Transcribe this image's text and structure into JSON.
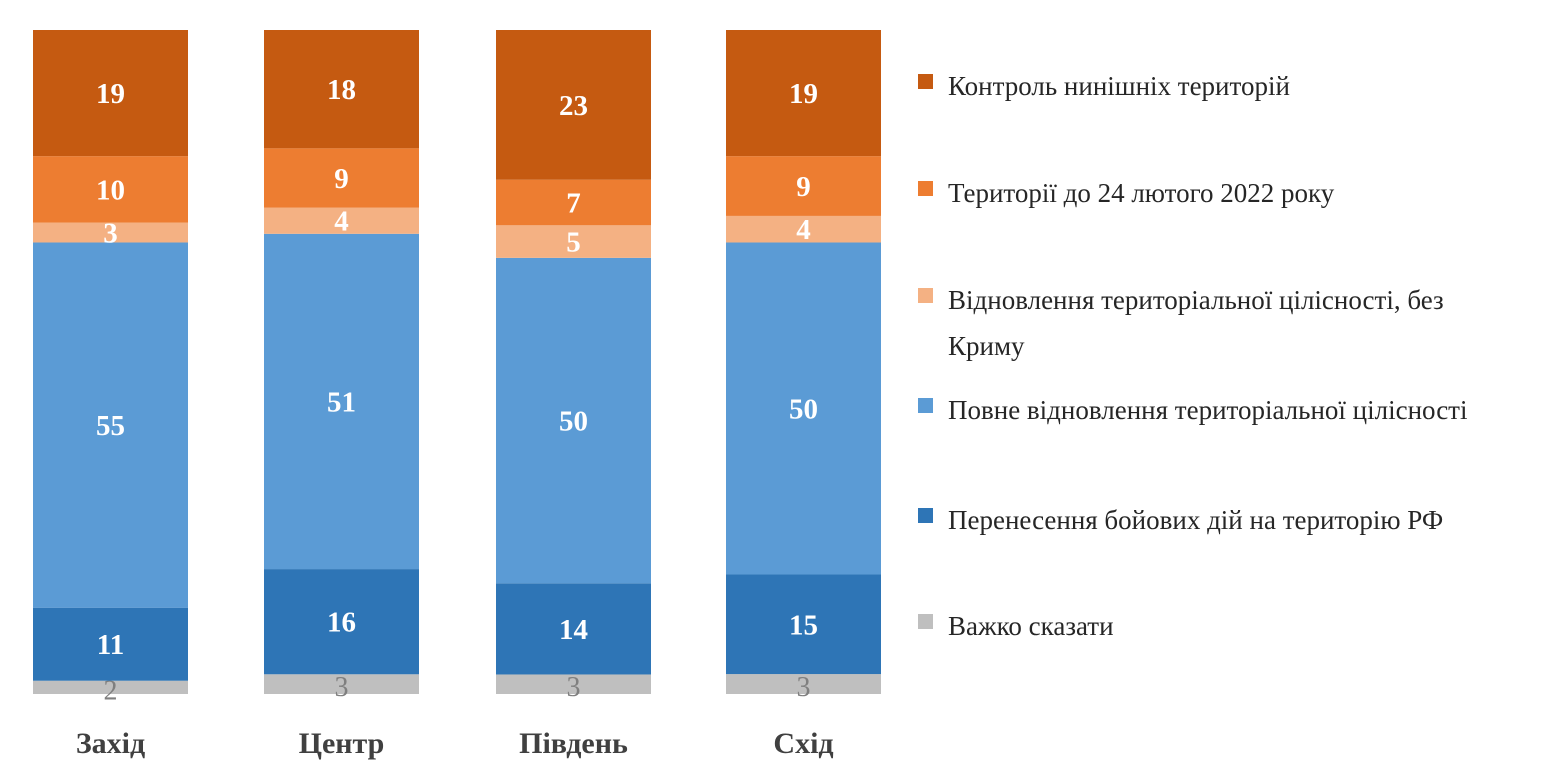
{
  "chart_data": {
    "type": "stacked-bar",
    "categories": [
      "Захід",
      "Центр",
      "Південь",
      "Схід"
    ],
    "series": [
      {
        "name": "Важко сказати",
        "color": "#BFBFBF",
        "label_color": "#7F7F7F",
        "values": [
          2,
          3,
          3,
          3
        ]
      },
      {
        "name": "Перенесення бойових дій на територію РФ",
        "color": "#2E75B6",
        "label_color": "#FFFFFF",
        "values": [
          11,
          16,
          14,
          15
        ]
      },
      {
        "name": "Повне відновлення територіальної цілісності",
        "color": "#5B9BD5",
        "label_color": "#FFFFFF",
        "values": [
          55,
          51,
          50,
          50
        ]
      },
      {
        "name": "Відновлення територіальної цілісності, без Криму",
        "color": "#F4B183",
        "label_color": "#FFFFFF",
        "values": [
          3,
          4,
          5,
          4
        ]
      },
      {
        "name": "Території до 24 лютого 2022 року",
        "color": "#ED7D31",
        "label_color": "#FFFFFF",
        "values": [
          10,
          9,
          7,
          9
        ]
      },
      {
        "name": "Контроль нинішніх територій",
        "color": "#C55A11",
        "label_color": "#FFFFFF",
        "values": [
          19,
          18,
          23,
          19
        ]
      }
    ],
    "legend": "right",
    "grid": false
  }
}
